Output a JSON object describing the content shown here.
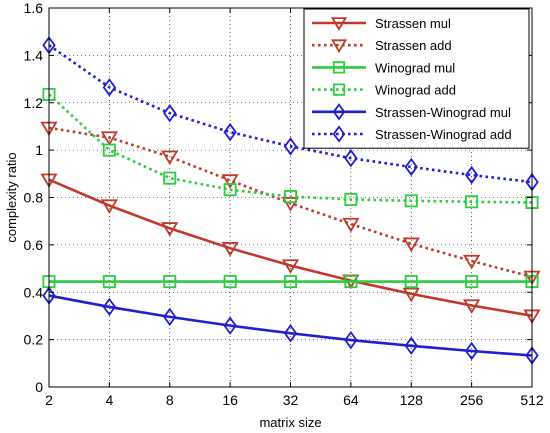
{
  "chart_data": {
    "type": "line",
    "title": "",
    "xlabel": "matrix size",
    "ylabel": "complexity ratio",
    "x_scale": "log2",
    "categories": [
      "2",
      "4",
      "8",
      "16",
      "32",
      "64",
      "128",
      "256",
      "512"
    ],
    "x": [
      2,
      4,
      8,
      16,
      32,
      64,
      128,
      256,
      512
    ],
    "ylim": [
      0,
      1.6
    ],
    "yticks": [
      0,
      0.2,
      0.4,
      0.6,
      0.8,
      1,
      1.2,
      1.4,
      1.6
    ],
    "ytick_labels": [
      "0",
      "0.2",
      "0.4",
      "0.6",
      "0.8",
      "1",
      "1.2",
      "1.4",
      "1.6"
    ],
    "grid": true,
    "legend_position": "top-right",
    "series": [
      {
        "name": "Strassen mul",
        "color": "#c0392b",
        "style": "solid",
        "marker": "triangle-down",
        "values": [
          0.875,
          0.766,
          0.67,
          0.586,
          0.513,
          0.449,
          0.393,
          0.344,
          0.301
        ]
      },
      {
        "name": "Strassen add",
        "color": "#c0392b",
        "style": "dotted",
        "marker": "triangle-down",
        "values": [
          1.094,
          1.053,
          0.972,
          0.872,
          0.776,
          0.688,
          0.605,
          0.532,
          0.465
        ]
      },
      {
        "name": "Winograd mul",
        "color": "#2ecc40",
        "style": "solid",
        "marker": "square",
        "values": [
          0.445,
          0.445,
          0.445,
          0.445,
          0.445,
          0.445,
          0.445,
          0.445,
          0.445
        ]
      },
      {
        "name": "Winograd add",
        "color": "#2ecc40",
        "style": "dotted",
        "marker": "square",
        "values": [
          1.235,
          1.0,
          0.882,
          0.833,
          0.804,
          0.792,
          0.786,
          0.782,
          0.779
        ]
      },
      {
        "name": "Strassen-Winograd mul",
        "color": "#1f1fd1",
        "style": "solid",
        "marker": "diamond",
        "values": [
          0.386,
          0.338,
          0.296,
          0.259,
          0.227,
          0.198,
          0.174,
          0.152,
          0.133
        ]
      },
      {
        "name": "Strassen-Winograd add",
        "color": "#1f1fd1",
        "style": "dotted",
        "marker": "diamond",
        "values": [
          1.443,
          1.265,
          1.156,
          1.076,
          1.016,
          0.966,
          0.929,
          0.895,
          0.865
        ]
      }
    ]
  }
}
